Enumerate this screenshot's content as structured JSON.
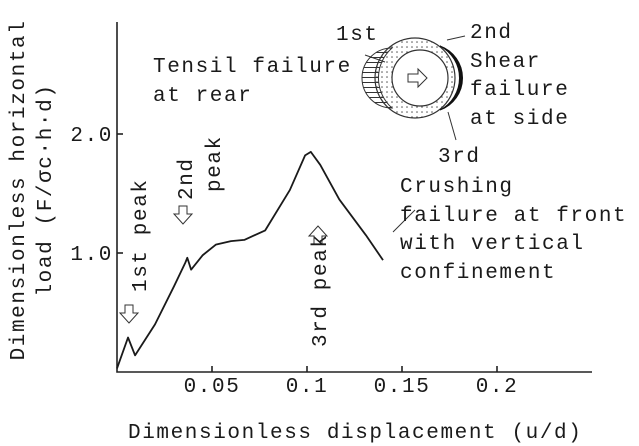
{
  "chart_data": {
    "type": "line",
    "xlabel": "Dimensionless displacement (u/d)",
    "ylabel": [
      "Dimensionless horizontal",
      "load (F/σc·h·d)"
    ],
    "xlim": [
      0,
      0.25
    ],
    "ylim": [
      0,
      3.0
    ],
    "xticks": [
      0.05,
      0.1,
      0.15,
      0.2
    ],
    "yticks": [
      {
        "value": 1,
        "label": "1.0"
      },
      {
        "value": 2,
        "label": "2.0"
      }
    ],
    "x": [
      0,
      0.0058,
      0.0095,
      0.02,
      0.03,
      0.036,
      0.037,
      0.039,
      0.045,
      0.052,
      0.06,
      0.067,
      0.078,
      0.091,
      0.099,
      0.102,
      0.107,
      0.117,
      0.131,
      0.14
    ],
    "series": [
      {
        "name": "load",
        "color": "#1a1a1a",
        "values": [
          0.03,
          0.29,
          0.14,
          0.4,
          0.72,
          0.92,
          0.96,
          0.86,
          0.98,
          1.07,
          1.1,
          1.11,
          1.19,
          1.53,
          1.82,
          1.85,
          1.74,
          1.45,
          1.15,
          0.94
        ]
      }
    ],
    "peak_labels": [
      "1st peak",
      "2nd",
      "peak",
      "3rd peak"
    ],
    "annotations": [
      "1st",
      "Tensil failure",
      "at rear",
      "2nd",
      "Shear",
      "failure",
      "at side",
      "3rd",
      "Crushing",
      "failure at front",
      "with vertical",
      "confinement"
    ]
  }
}
